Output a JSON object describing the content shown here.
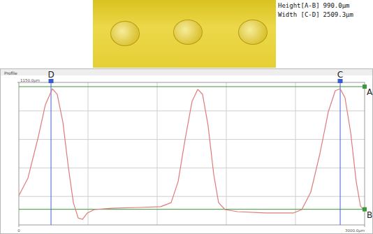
{
  "chart_data": {
    "type": "line",
    "title": "Profile",
    "color": "#e07a7a",
    "grid": true,
    "tick_labels": true,
    "xlim": [
      0,
      3000
    ],
    "ylim": [
      0,
      1150
    ],
    "xticks": [
      0,
      {
        "value": 3000,
        "label": "3000.0μm"
      }
    ],
    "yticks": [
      {
        "value": 1150,
        "label": "1150.0μm"
      }
    ],
    "x": [
      0,
      79,
      170,
      230,
      291,
      333,
      382,
      430,
      473,
      515,
      552,
      594,
      655,
      806,
      1048,
      1230,
      1321,
      1382,
      1442,
      1503,
      1552,
      1594,
      1642,
      1691,
      1733,
      1788,
      1897,
      2139,
      2382,
      2455,
      2533,
      2612,
      2685,
      2745,
      2788,
      2830,
      2879,
      2927,
      2964,
      3000
    ],
    "values": [
      237,
      378,
      716,
      970,
      1099,
      1054,
      829,
      462,
      180,
      56,
      45,
      96,
      124,
      135,
      141,
      147,
      180,
      350,
      688,
      998,
      1094,
      1054,
      800,
      406,
      180,
      124,
      107,
      96,
      96,
      124,
      265,
      575,
      913,
      1082,
      1099,
      1026,
      744,
      350,
      152,
      113
    ],
    "cursors": [
      {
        "label": "D",
        "x": 279
      },
      {
        "label": "C",
        "x": 2788
      }
    ],
    "levels": [
      {
        "label": "A",
        "y": 1116
      },
      {
        "label": "B",
        "y": 126
      }
    ],
    "measurements": [
      {
        "label": "Height[A-B]",
        "value": "990.0μm"
      },
      {
        "label": "Width [C-D]",
        "value": "2509.3μm"
      }
    ]
  }
}
